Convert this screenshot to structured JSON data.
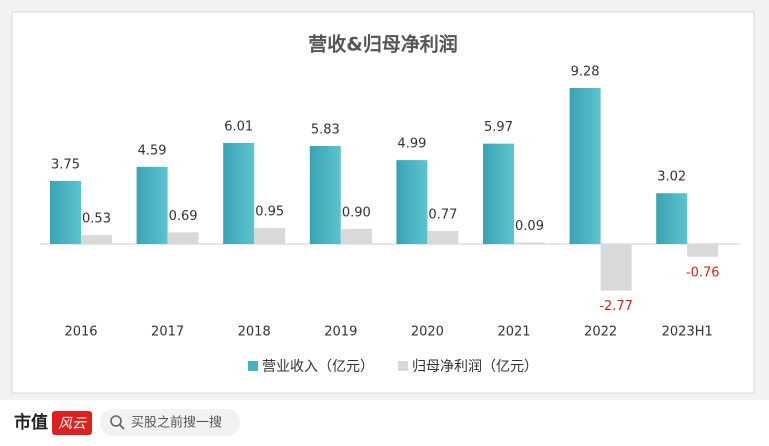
{
  "chart_data": {
    "type": "bar",
    "title": "营收&归母净利润",
    "categories": [
      "2016",
      "2017",
      "2018",
      "2019",
      "2020",
      "2021",
      "2022",
      "2023H1"
    ],
    "series": [
      {
        "name": "营业收入（亿元）",
        "color": "#46b3c0",
        "values": [
          3.75,
          4.59,
          6.01,
          5.83,
          4.99,
          5.97,
          9.28,
          3.02
        ]
      },
      {
        "name": "归母净利润（亿元）",
        "color": "#d9d9d9",
        "values": [
          0.53,
          0.69,
          0.95,
          0.9,
          0.77,
          0.09,
          -2.77,
          -0.76
        ],
        "value_labels": [
          "0.53",
          "0.69",
          "0.95",
          "0.90",
          "0.77",
          "0.09",
          "-2.77",
          "-0.76"
        ]
      }
    ],
    "negative_label_color": "#e02020"
  },
  "footer": {
    "brand": "市值",
    "logo": "风云",
    "search_placeholder": "买股之前搜一搜"
  }
}
